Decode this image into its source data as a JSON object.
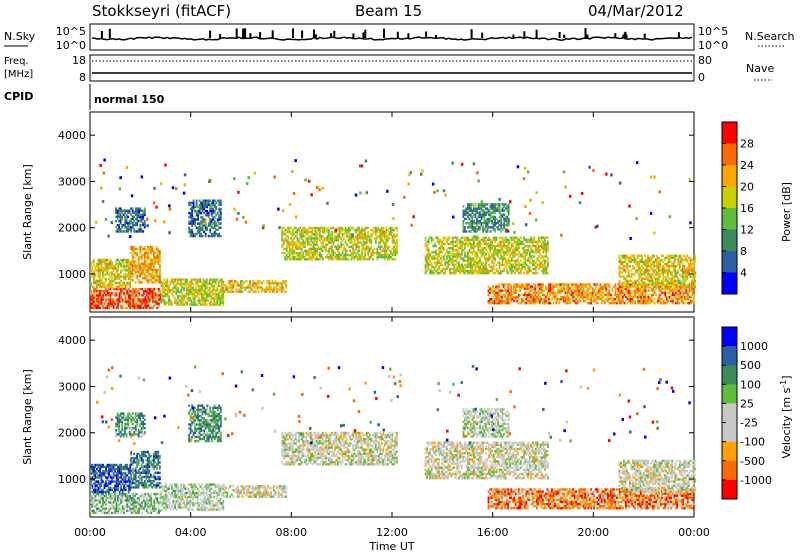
{
  "header": {
    "station": "Stokkseyri (fitACF)",
    "beam": "Beam 15",
    "date": "04/Mar/2012"
  },
  "sky_panel": {
    "left_label": "N.Sky",
    "right_label": "N.Search",
    "tick_top": "10^5",
    "tick_bottom": "10^0",
    "right_tick_top": "10^5",
    "right_tick_bottom": "10^0"
  },
  "freq_panel": {
    "left_label_1": "Freq.",
    "left_label_2": "[MHz]",
    "right_label": "Nave",
    "left_ticks": [
      "18",
      "8"
    ],
    "right_ticks": [
      "80",
      "0"
    ]
  },
  "cpid": {
    "label": "CPID",
    "value": "normal 150"
  },
  "colors": {
    "power_scale": [
      "#0000ff",
      "#2c5fa6",
      "#3a8a5a",
      "#5cbe3c",
      "#c8d200",
      "#ffa500",
      "#ff6a00",
      "#ff0000"
    ],
    "velocity_scale": [
      "#ff0000",
      "#ff6a00",
      "#ffa000",
      "#c8c8c8",
      "#c8c8c8",
      "#5cbe3c",
      "#3a8a5a",
      "#2c5fa6",
      "#0000ff"
    ],
    "ground_scatter": "#c0c0c0"
  },
  "chart_data": [
    {
      "type": "heatmap",
      "title": "",
      "xlabel": "",
      "ylabel": "Slant Range [km]",
      "xlim": [
        0,
        24
      ],
      "ylim": [
        180,
        4500
      ],
      "x_ticks": [
        "00:00",
        "04:00",
        "08:00",
        "12:00",
        "16:00",
        "20:00",
        "00:00"
      ],
      "y_ticks": [
        1000,
        2000,
        3000,
        4000
      ],
      "colorbar": {
        "label": "Power [dB]",
        "ticks": [
          "4",
          "8",
          "12",
          "16",
          "20",
          "24",
          "28"
        ]
      },
      "regions": [
        {
          "t0": 0.0,
          "t1": 2.8,
          "r0": 250,
          "r1": 700,
          "level": 0.85
        },
        {
          "t0": 0.0,
          "t1": 1.6,
          "r0": 700,
          "r1": 1300,
          "level": 0.6
        },
        {
          "t0": 1.6,
          "t1": 2.8,
          "r0": 800,
          "r1": 1600,
          "level": 0.7
        },
        {
          "t0": 2.8,
          "t1": 5.3,
          "r0": 320,
          "r1": 900,
          "level": 0.55
        },
        {
          "t0": 5.3,
          "t1": 7.8,
          "r0": 600,
          "r1": 850,
          "level": 0.65
        },
        {
          "t0": 1.0,
          "t1": 2.2,
          "r0": 1900,
          "r1": 2400,
          "level": 0.25
        },
        {
          "t0": 3.9,
          "t1": 5.2,
          "r0": 1800,
          "r1": 2600,
          "level": 0.25
        },
        {
          "t0": 7.6,
          "t1": 12.2,
          "r0": 1300,
          "r1": 2000,
          "level": 0.55
        },
        {
          "t0": 13.3,
          "t1": 18.2,
          "r0": 1000,
          "r1": 1800,
          "level": 0.55
        },
        {
          "t0": 15.8,
          "t1": 24.0,
          "r0": 350,
          "r1": 800,
          "level": 0.75
        },
        {
          "t0": 21.0,
          "t1": 24.0,
          "r0": 700,
          "r1": 1400,
          "level": 0.6
        },
        {
          "t0": 14.8,
          "t1": 16.6,
          "r0": 1900,
          "r1": 2500,
          "level": 0.3
        }
      ]
    },
    {
      "type": "heatmap",
      "title": "",
      "xlabel": "Time UT",
      "ylabel": "Slant Range [km]",
      "xlim": [
        0,
        24
      ],
      "ylim": [
        180,
        4500
      ],
      "x_ticks": [
        "00:00",
        "04:00",
        "08:00",
        "12:00",
        "16:00",
        "20:00",
        "00:00"
      ],
      "y_ticks": [
        1000,
        2000,
        3000,
        4000
      ],
      "colorbar": {
        "label": "Velocity [m s^-1]",
        "ticks": [
          "1000",
          "500",
          "100",
          "25",
          "-25",
          "-100",
          "-500",
          "-1000"
        ]
      },
      "regions": [
        {
          "t0": 0.0,
          "t1": 2.8,
          "r0": 250,
          "r1": 700,
          "level": 0.6
        },
        {
          "t0": 0.0,
          "t1": 1.6,
          "r0": 700,
          "r1": 1300,
          "level": 0.85
        },
        {
          "t0": 1.6,
          "t1": 2.8,
          "r0": 800,
          "r1": 1600,
          "level": 0.75
        },
        {
          "t0": 2.8,
          "t1": 5.3,
          "r0": 320,
          "r1": 900,
          "level": 0.5
        },
        {
          "t0": 5.3,
          "t1": 7.8,
          "r0": 600,
          "r1": 850,
          "level": 0.45
        },
        {
          "t0": 1.0,
          "t1": 2.2,
          "r0": 1900,
          "r1": 2400,
          "level": 0.7
        },
        {
          "t0": 3.9,
          "t1": 5.2,
          "r0": 1800,
          "r1": 2600,
          "level": 0.7
        },
        {
          "t0": 7.6,
          "t1": 12.2,
          "r0": 1300,
          "r1": 2000,
          "level": 0.45
        },
        {
          "t0": 13.3,
          "t1": 18.2,
          "r0": 1000,
          "r1": 1800,
          "level": 0.45
        },
        {
          "t0": 15.8,
          "t1": 24.0,
          "r0": 350,
          "r1": 800,
          "level": 0.2
        },
        {
          "t0": 21.0,
          "t1": 24.0,
          "r0": 700,
          "r1": 1400,
          "level": 0.45
        },
        {
          "t0": 14.8,
          "t1": 16.6,
          "r0": 1900,
          "r1": 2500,
          "level": 0.5
        }
      ]
    }
  ]
}
